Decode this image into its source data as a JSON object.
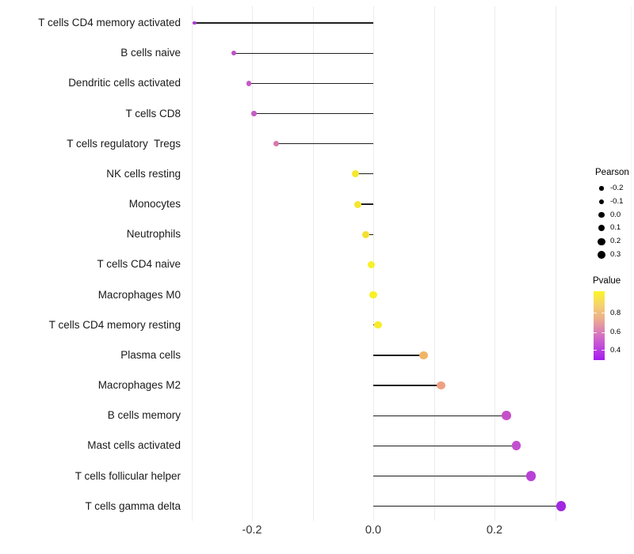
{
  "chart_data": {
    "type": "scatter",
    "variant": "lollipop",
    "title": "",
    "xlabel": "",
    "ylabel": "",
    "xlim": [
      -0.311,
      0.425
    ],
    "grid": "vertical-only",
    "gridline_values": [
      -0.3,
      -0.2,
      -0.1,
      0.0,
      0.1,
      0.2,
      0.3
    ],
    "x_ticks": {
      "values": [
        -0.2,
        0.0,
        0.2
      ],
      "labels": [
        "-0.2",
        "0.0",
        "0.2"
      ]
    },
    "points": [
      {
        "label": "T cells CD4 memory activated",
        "pearson": -0.295,
        "pvalue": 0.4,
        "color": "#AC3BD0"
      },
      {
        "label": "B cells naive",
        "pearson": -0.23,
        "pvalue": 0.47,
        "color": "#BE50C8"
      },
      {
        "label": "Dendritic cells activated",
        "pearson": -0.205,
        "pvalue": 0.5,
        "color": "#C558C8"
      },
      {
        "label": "T cells CD8",
        "pearson": -0.197,
        "pvalue": 0.5,
        "color": "#C65BC6"
      },
      {
        "label": "T cells regulatory  Tregs",
        "pearson": -0.16,
        "pvalue": 0.58,
        "color": "#D877AD"
      },
      {
        "label": "NK cells resting",
        "pearson": -0.029,
        "pvalue": 0.93,
        "color": "#F5E72E"
      },
      {
        "label": "Monocytes",
        "pearson": -0.026,
        "pvalue": 0.93,
        "color": "#F5E72E"
      },
      {
        "label": "Neutrophils",
        "pearson": -0.012,
        "pvalue": 0.91,
        "color": "#F4E032"
      },
      {
        "label": "T cells CD4 naive",
        "pearson": -0.003,
        "pvalue": 0.97,
        "color": "#F8F027"
      },
      {
        "label": "Macrophages M0",
        "pearson": 0.0,
        "pvalue": 0.98,
        "color": "#F9F126"
      },
      {
        "label": "T cells CD4 memory resting",
        "pearson": 0.008,
        "pvalue": 0.95,
        "color": "#F7EC2A"
      },
      {
        "label": "Plasma cells",
        "pearson": 0.083,
        "pvalue": 0.82,
        "color": "#F0B468"
      },
      {
        "label": "Macrophages M2",
        "pearson": 0.112,
        "pvalue": 0.76,
        "color": "#EEA082"
      },
      {
        "label": "B cells memory",
        "pearson": 0.22,
        "pvalue": 0.49,
        "color": "#C650C8"
      },
      {
        "label": "Mast cells activated",
        "pearson": 0.236,
        "pvalue": 0.47,
        "color": "#C24FD0"
      },
      {
        "label": "T cells follicular helper",
        "pearson": 0.26,
        "pvalue": 0.44,
        "color": "#B941D7"
      },
      {
        "label": "T cells gamma delta",
        "pearson": 0.31,
        "pvalue": 0.38,
        "color": "#A028E1"
      }
    ],
    "legend_size": {
      "title": "Pearson",
      "values": [
        "-0.2",
        "-0.1",
        "0.0",
        "0.1",
        "0.2",
        "0.3"
      ]
    },
    "legend_color": {
      "title": "Pvalue",
      "ticks": [
        "0.8",
        "0.6",
        "0.4"
      ],
      "range_top_to_bottom": [
        1.0,
        0.3
      ],
      "gradient_top_to_bottom": [
        "#FAF626",
        "#F6D26F",
        "#ECAE8D",
        "#D97BBA",
        "#C14BDB",
        "#A41BEF"
      ]
    },
    "legend_position": "right"
  },
  "style": {
    "background": "#ffffff",
    "gridline": "#ececec",
    "panel_edge": "#f4f4f4",
    "stem": "#1f1f1f",
    "axis_text": "#1a1a1a",
    "tick_text": "#333333",
    "legend_dot": "#000000",
    "legend_text": "#000000"
  }
}
